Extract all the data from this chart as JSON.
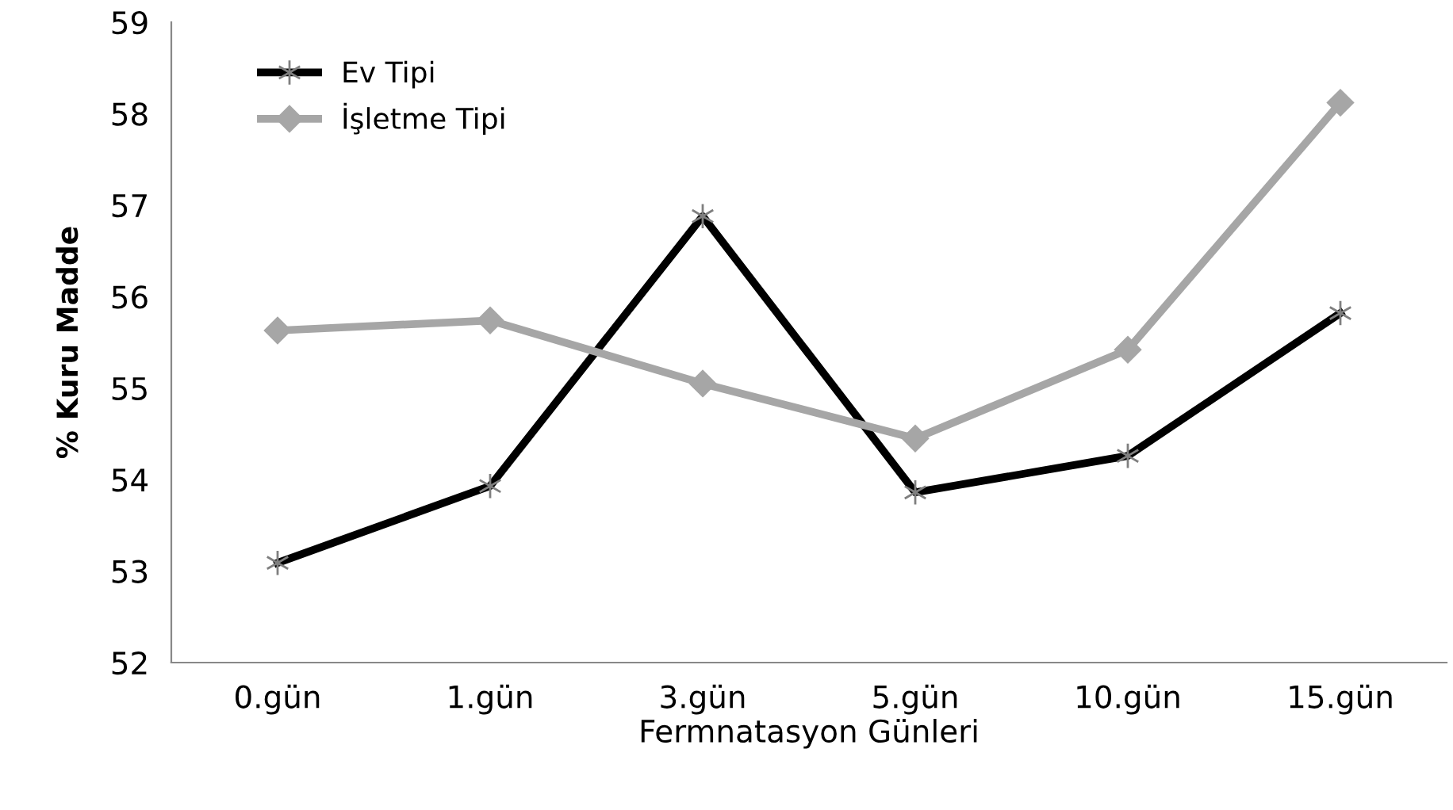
{
  "chart_data": {
    "type": "line",
    "xlabel": "Fermnatasyon Günleri",
    "ylabel": "% Kuru Madde",
    "categories": [
      "0.gün",
      "1.gün",
      "3.gün",
      "5.gün",
      "10.gün",
      "15.gün"
    ],
    "series": [
      {
        "name": "Ev Tipi",
        "color": "#000000",
        "marker": "cross",
        "values": [
          53.09,
          53.93,
          56.88,
          53.86,
          54.26,
          55.82
        ]
      },
      {
        "name": "İşletme Tipi",
        "color": "#a6a6a6",
        "marker": "diamond",
        "values": [
          55.63,
          55.74,
          55.05,
          54.45,
          55.42,
          58.12
        ]
      }
    ],
    "ylim": [
      52,
      59
    ],
    "yticks": [
      52,
      53,
      54,
      55,
      56,
      57,
      58,
      59
    ],
    "grid": false,
    "legend": "top left",
    "line_style": "solid"
  }
}
